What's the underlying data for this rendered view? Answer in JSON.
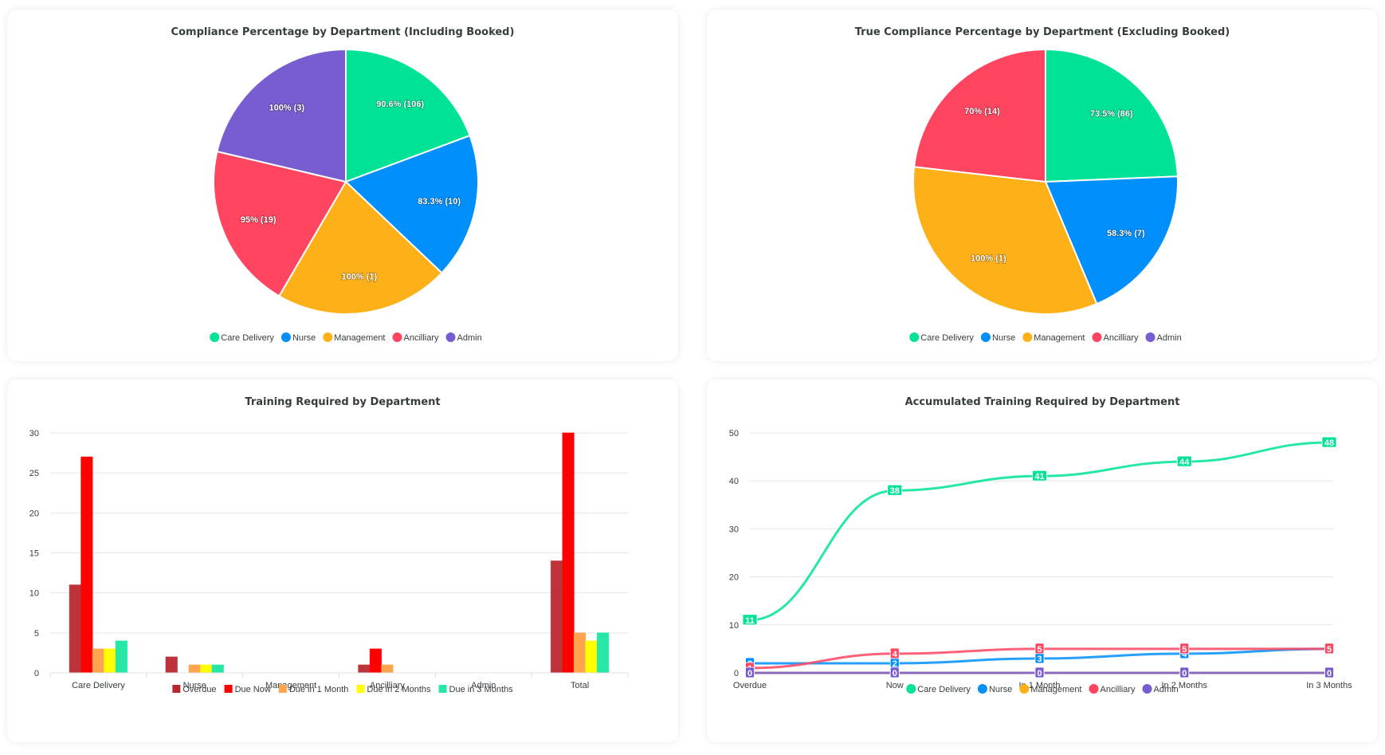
{
  "colors": {
    "departments": {
      "Care Delivery": "#00e396",
      "Nurse": "#008ffb",
      "Management": "#feb019",
      "Ancilliary": "#ff4560",
      "Admin": "#775dd0"
    },
    "due": {
      "Overdue": "#b8292f",
      "Due Now": "#ff0000",
      "Due in 1 Month": "#ffa550",
      "Due in 2 Months": "#ffff00",
      "Due in 3 Months": "#26e7a6"
    }
  },
  "chart_data": [
    {
      "id": "compliance-including-booked",
      "type": "pie",
      "title": "Compliance Percentage by Department (Including Booked)",
      "categories": [
        "Care Delivery",
        "Nurse",
        "Management",
        "Ancilliary",
        "Admin"
      ],
      "values": [
        90.6,
        83.3,
        100,
        95,
        100
      ],
      "counts": [
        106,
        10,
        1,
        19,
        3
      ],
      "data_labels": [
        "90.6% (106)",
        "83.3% (10)",
        "100% (1)",
        "95% (19)",
        "100% (3)"
      ],
      "legend": [
        "Care Delivery",
        "Nurse",
        "Management",
        "Ancilliary",
        "Admin"
      ],
      "legend_position": "bottom"
    },
    {
      "id": "true-compliance-excluding-booked",
      "type": "pie",
      "title": "True Compliance Percentage by Department (Excluding Booked)",
      "categories": [
        "Care Delivery",
        "Nurse",
        "Management",
        "Ancilliary",
        "Admin"
      ],
      "values": [
        73.5,
        58.3,
        100,
        70,
        0
      ],
      "counts": [
        86,
        7,
        1,
        14,
        null
      ],
      "data_labels": [
        "73.5% (86)",
        "58.3% (7)",
        "100% (1)",
        "70% (14)",
        ""
      ],
      "legend": [
        "Care Delivery",
        "Nurse",
        "Management",
        "Ancilliary",
        "Admin"
      ],
      "legend_position": "bottom"
    },
    {
      "id": "training-required",
      "type": "bar",
      "title": "Training Required by Department",
      "categories": [
        "Care Delivery",
        "Nurse",
        "Management",
        "Ancilliary",
        "Admin",
        "Total"
      ],
      "series": [
        {
          "name": "Overdue",
          "values": [
            11,
            2,
            0,
            1,
            0,
            14
          ]
        },
        {
          "name": "Due Now",
          "values": [
            27,
            0,
            0,
            3,
            0,
            30
          ]
        },
        {
          "name": "Due in 1 Month",
          "values": [
            3,
            1,
            0,
            1,
            0,
            5
          ]
        },
        {
          "name": "Due in 2 Months",
          "values": [
            3,
            1,
            0,
            0,
            0,
            4
          ]
        },
        {
          "name": "Due in 3 Months",
          "values": [
            4,
            1,
            0,
            0,
            0,
            5
          ]
        }
      ],
      "yticks": [
        0,
        5,
        10,
        15,
        20,
        25,
        30
      ],
      "ylim": [
        0,
        30
      ],
      "xlabel": "",
      "ylabel": "",
      "grid": true,
      "legend_position": "bottom"
    },
    {
      "id": "accumulated-training",
      "type": "line",
      "title": "Accumulated Training Required by Department",
      "categories": [
        "Overdue",
        "Now",
        "In 1 Month",
        "In 2 Months",
        "In 3 Months"
      ],
      "series": [
        {
          "name": "Care Delivery",
          "values": [
            11,
            38,
            41,
            44,
            48
          ]
        },
        {
          "name": "Nurse",
          "values": [
            2,
            2,
            3,
            4,
            5
          ]
        },
        {
          "name": "Management",
          "values": [
            0,
            0,
            0,
            0,
            0
          ]
        },
        {
          "name": "Ancilliary",
          "values": [
            1,
            4,
            5,
            5,
            5
          ]
        },
        {
          "name": "Admin",
          "values": [
            0,
            0,
            0,
            0,
            0
          ]
        }
      ],
      "yticks": [
        0,
        10,
        20,
        30,
        40,
        50
      ],
      "ylim": [
        0,
        50
      ],
      "xlabel": "",
      "ylabel": "",
      "grid": true,
      "legend_position": "bottom"
    }
  ]
}
